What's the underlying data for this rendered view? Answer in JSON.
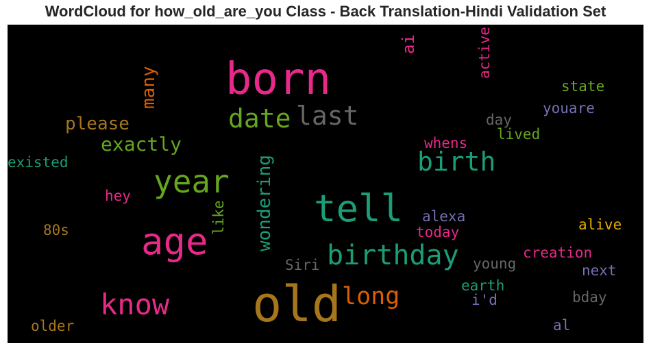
{
  "title": "WordCloud for how_old_are_you Class - Back Translation-Hindi Validation Set",
  "chart_data": {
    "type": "wordcloud",
    "title": "WordCloud for how_old_are_you Class - Back Translation-Hindi Validation Set",
    "background": "#000000",
    "words": [
      {
        "text": "born",
        "color": "#e7298a",
        "rank": 1
      },
      {
        "text": "old",
        "color": "#a6761d",
        "rank": 1
      },
      {
        "text": "age",
        "color": "#e7298a",
        "rank": 2
      },
      {
        "text": "tell",
        "color": "#1b9e77",
        "rank": 2
      },
      {
        "text": "year",
        "color": "#66a61e",
        "rank": 3
      },
      {
        "text": "know",
        "color": "#e7298a",
        "rank": 3
      },
      {
        "text": "birthday",
        "color": "#1b9e77",
        "rank": 4
      },
      {
        "text": "birth",
        "color": "#1b9e77",
        "rank": 4
      },
      {
        "text": "date",
        "color": "#66a61e",
        "rank": 4
      },
      {
        "text": "last",
        "color": "#666666",
        "rank": 4
      },
      {
        "text": "long",
        "color": "#d95f02",
        "rank": 4
      },
      {
        "text": "wondering",
        "color": "#1b9e77",
        "rank": 5
      },
      {
        "text": "exactly",
        "color": "#66a61e",
        "rank": 5
      },
      {
        "text": "please",
        "color": "#a6761d",
        "rank": 5
      },
      {
        "text": "many",
        "color": "#d95f02",
        "rank": 5
      },
      {
        "text": "ai",
        "color": "#e7298a",
        "rank": 5
      },
      {
        "text": "active",
        "color": "#e7298a",
        "rank": 6
      },
      {
        "text": "state",
        "color": "#66a61e",
        "rank": 6
      },
      {
        "text": "youare",
        "color": "#7570b3",
        "rank": 6
      },
      {
        "text": "day",
        "color": "#666666",
        "rank": 6
      },
      {
        "text": "lived",
        "color": "#66a61e",
        "rank": 6
      },
      {
        "text": "whens",
        "color": "#e7298a",
        "rank": 6
      },
      {
        "text": "existed",
        "color": "#1b9e77",
        "rank": 6
      },
      {
        "text": "hey",
        "color": "#e7298a",
        "rank": 6
      },
      {
        "text": "like",
        "color": "#66a61e",
        "rank": 6
      },
      {
        "text": "alexa",
        "color": "#7570b3",
        "rank": 6
      },
      {
        "text": "today",
        "color": "#e7298a",
        "rank": 6
      },
      {
        "text": "alive",
        "color": "#e6ab02",
        "rank": 6
      },
      {
        "text": "80s",
        "color": "#a6761d",
        "rank": 6
      },
      {
        "text": "Siri",
        "color": "#666666",
        "rank": 6
      },
      {
        "text": "young",
        "color": "#666666",
        "rank": 6
      },
      {
        "text": "creation",
        "color": "#e7298a",
        "rank": 6
      },
      {
        "text": "next",
        "color": "#7570b3",
        "rank": 6
      },
      {
        "text": "earth",
        "color": "#1b9e77",
        "rank": 6
      },
      {
        "text": "i'd",
        "color": "#7570b3",
        "rank": 6
      },
      {
        "text": "bday",
        "color": "#666666",
        "rank": 6
      },
      {
        "text": "older",
        "color": "#a6761d",
        "rank": 6
      },
      {
        "text": "al",
        "color": "#7570b3",
        "rank": 6
      }
    ]
  }
}
